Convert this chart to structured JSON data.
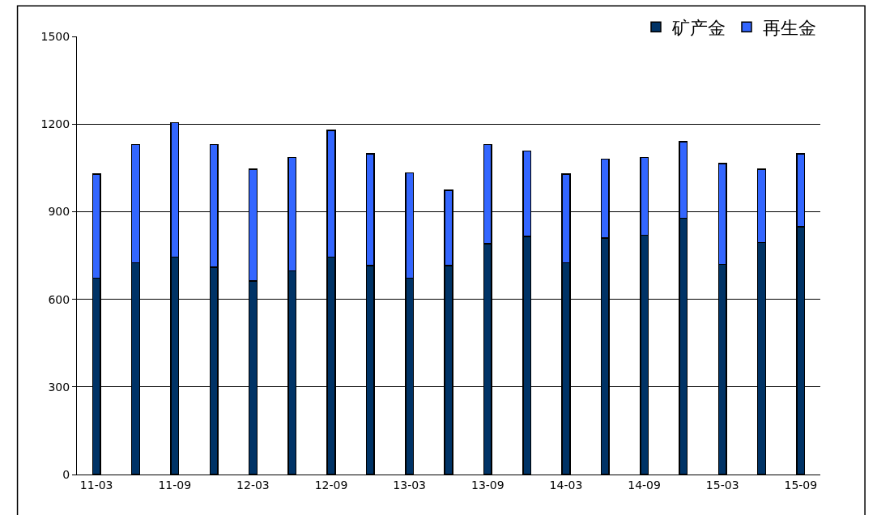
{
  "chart_data": {
    "type": "bar",
    "stacked": true,
    "categories": [
      "11-03",
      null,
      "11-09",
      null,
      "12-03",
      null,
      "12-09",
      null,
      "13-03",
      null,
      "13-09",
      null,
      "14-03",
      null,
      "14-09",
      null,
      "15-03",
      null,
      "15-09"
    ],
    "series": [
      {
        "name": "矿产金",
        "color": "#003366",
        "values": [
          672,
          725,
          745,
          710,
          662,
          698,
          745,
          715,
          672,
          715,
          790,
          815,
          725,
          810,
          820,
          878,
          720,
          795,
          848
        ]
      },
      {
        "name": "再生金",
        "color": "#3366ff",
        "values": [
          356,
          405,
          460,
          420,
          383,
          387,
          433,
          383,
          361,
          258,
          340,
          293,
          303,
          270,
          265,
          262,
          345,
          250,
          250
        ]
      }
    ],
    "ylim": [
      0,
      1500
    ],
    "yticks": [
      0,
      300,
      600,
      900,
      1200,
      1500
    ],
    "grid": "y",
    "legend": "top right"
  }
}
